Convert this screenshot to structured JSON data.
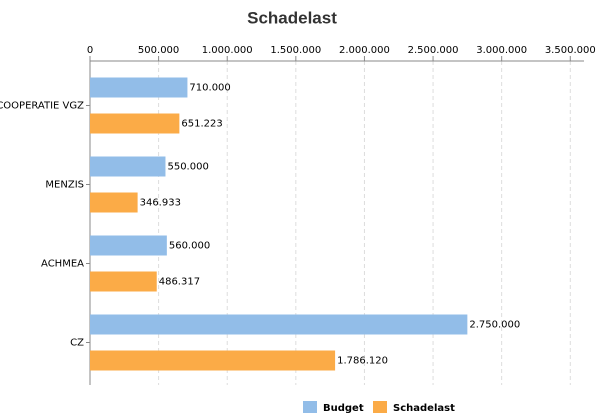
{
  "chart_data": {
    "type": "bar",
    "orientation": "horizontal",
    "title": "Schadelast",
    "categories": [
      "COOPERATIE VGZ",
      "MENZIS",
      "ACHMEA",
      "CZ"
    ],
    "series": [
      {
        "name": "Budget",
        "color": "#92bde8",
        "values": [
          710000,
          550000,
          560000,
          2750000
        ],
        "value_labels": [
          "710.000",
          "550.000",
          "560.000",
          "2.750.000"
        ]
      },
      {
        "name": "Schadelast",
        "color": "#fbab47",
        "values": [
          651223,
          346933,
          486317,
          1786120
        ],
        "value_labels": [
          "651.223",
          "346.933",
          "486.317",
          "1.786.120"
        ]
      }
    ],
    "xlim": [
      0,
      3600000
    ],
    "xticks": [
      0,
      {
        "value": 500000,
        "label": "500.000"
      },
      {
        "value": 1000000,
        "label": "1.000.000"
      },
      {
        "value": 1500000,
        "label": "1.500.000"
      },
      {
        "value": 2000000,
        "label": "2.000.000"
      },
      {
        "value": 2500000,
        "label": "2.500.000"
      },
      {
        "value": 3000000,
        "label": "3.000.000"
      },
      {
        "value": 3500000,
        "label": "3.500.000"
      }
    ],
    "grid": true,
    "legend": "bottom"
  }
}
